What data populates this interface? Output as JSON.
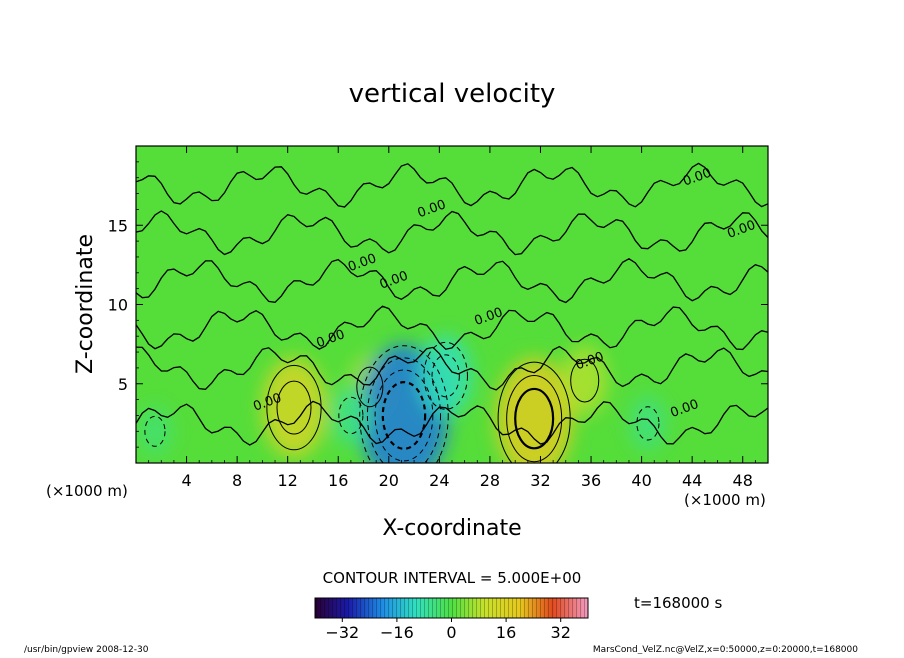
{
  "chart_data": {
    "type": "heatmap",
    "title": "vertical velocity",
    "xlabel": "X-coordinate",
    "ylabel": "Z-coordinate",
    "x_unit_left": "(×1000 m)",
    "x_unit_right": "(×1000 m)",
    "xlim": [
      0,
      50
    ],
    "ylim": [
      0,
      20
    ],
    "x_ticks": [
      4,
      8,
      12,
      16,
      20,
      24,
      28,
      32,
      36,
      40,
      44,
      48
    ],
    "y_ticks": [
      5,
      10,
      15
    ],
    "contour_interval_text": "CONTOUR INTERVAL = 5.000E+00",
    "contour_labels": [
      "0.00",
      "0.00",
      "0.00",
      "0.00",
      "0.00",
      "0.00",
      "0.00",
      "0.00",
      "0.00",
      "0.00"
    ],
    "time_text": "t=168000 s",
    "colorbar": {
      "range": [
        -40,
        40
      ],
      "ticks": [
        -32,
        -16,
        0,
        16,
        32
      ],
      "colormap": "rainbow"
    },
    "features": [
      {
        "kind": "updraft",
        "x": 12.5,
        "z": 3.5,
        "value": 14
      },
      {
        "kind": "updraft",
        "x": 31.5,
        "z": 2.8,
        "value": 18
      },
      {
        "kind": "updraft",
        "x": 35.5,
        "z": 5.2,
        "value": 8
      },
      {
        "kind": "updraft",
        "x": 18.5,
        "z": 4.8,
        "value": 7
      },
      {
        "kind": "downdraft",
        "x": 21.2,
        "z": 3.0,
        "value": -22
      },
      {
        "kind": "downdraft",
        "x": 24.5,
        "z": 5.5,
        "value": -10
      },
      {
        "kind": "downdraft",
        "x": 17.0,
        "z": 3.0,
        "value": -6
      },
      {
        "kind": "downdraft",
        "x": 40.5,
        "z": 2.5,
        "value": -5
      },
      {
        "kind": "downdraft",
        "x": 1.5,
        "z": 2.0,
        "value": -4
      }
    ]
  },
  "footer": {
    "left": "/usr/bin/gpview   2008-12-30",
    "right": "MarsCond_VelZ.nc@VelZ,x=0:50000,z=0:20000,t=168000"
  }
}
